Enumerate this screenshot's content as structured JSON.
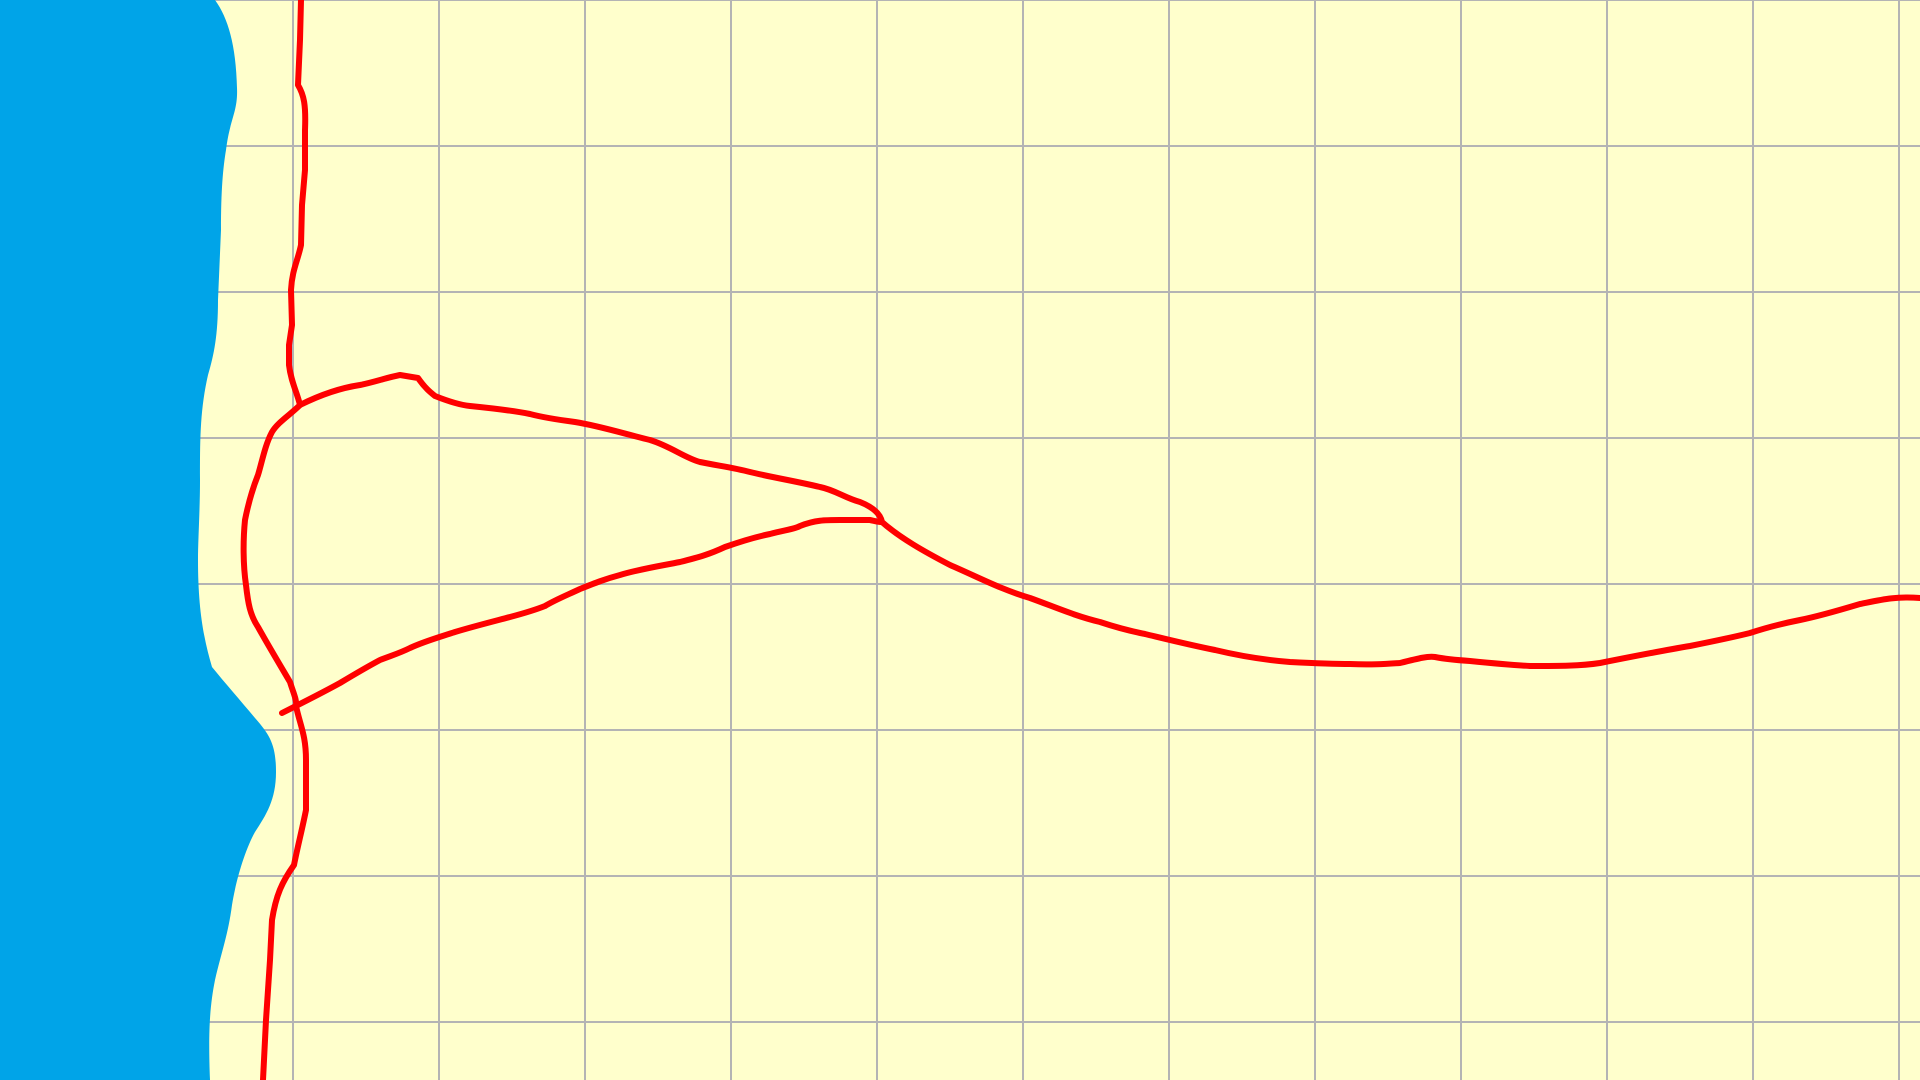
{
  "map": {
    "land_color": "#ffffcc",
    "water_color": "#00a4e8",
    "grid_color": "#b4b4b4",
    "route_color": "#ff0000",
    "grid_visible": true,
    "features": [
      {
        "kind": "water",
        "name": "shoreline-water"
      },
      {
        "kind": "route",
        "name": "north-south-route"
      },
      {
        "kind": "route",
        "name": "upper-east-west-route"
      },
      {
        "kind": "route",
        "name": "lower-east-west-route"
      },
      {
        "kind": "route",
        "name": "western-loop-route"
      }
    ]
  }
}
